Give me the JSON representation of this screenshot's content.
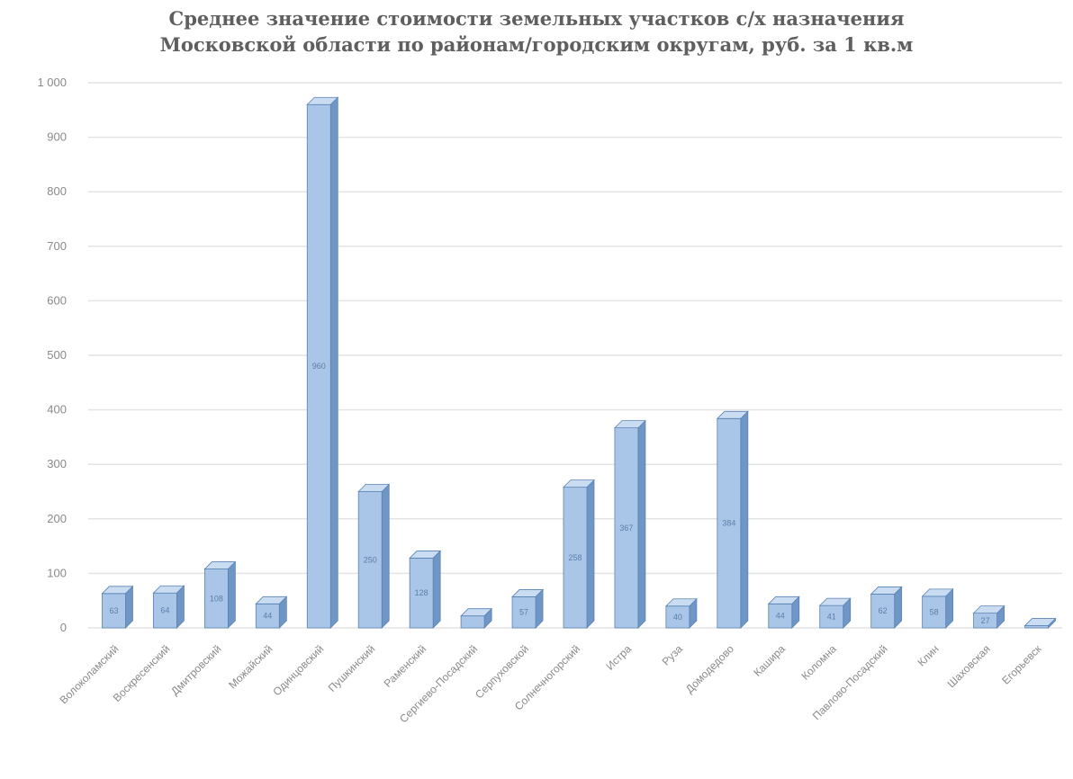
{
  "chart_data": {
    "type": "bar",
    "title_lines": [
      "Среднее значение стоимости земельных участков с/х назначения",
      "Московской области по районам/городским округам, руб. за 1 кв.м"
    ],
    "xlabel": "",
    "ylabel": "",
    "ylim": [
      0,
      1000
    ],
    "yticks": [
      0,
      100,
      200,
      300,
      400,
      500,
      600,
      700,
      800,
      900,
      1000
    ],
    "ytick_labels": [
      "0",
      "100",
      "200",
      "300",
      "400",
      "500",
      "600",
      "700",
      "800",
      "900",
      "1 000"
    ],
    "grid": true,
    "categories": [
      "Волоколамский",
      "Воскресенский",
      "Дмитровский",
      "Можайский",
      "Одинцовский",
      "Пушкинский",
      "Раменский",
      "Сергиево-Посадский",
      "Серпуховской",
      "Солнечногорский",
      "Истра",
      "Руза",
      "Домодедово",
      "Кашира",
      "Коломна",
      "Павлово-Посадский",
      "Клин",
      "Шаховская",
      "Егорьевск"
    ],
    "values": [
      63,
      64,
      108,
      44,
      960,
      250,
      128,
      22,
      57,
      258,
      367,
      40,
      384,
      44,
      41,
      62,
      58,
      27,
      4
    ],
    "data_labels": [
      "63",
      "64",
      "108",
      "44",
      "960",
      "250",
      "128",
      "22",
      "57",
      "258",
      "367",
      "40",
      "384",
      "44",
      "41",
      "62",
      "58",
      "27",
      "4"
    ],
    "colors": {
      "bar_front": "#a9c6e8",
      "bar_side": "#6f96c5",
      "bar_top": "#c9dcf2",
      "bar_edge": "#5a82b3",
      "grid": "#e4e4e4",
      "text": "#8a8a8a"
    }
  }
}
